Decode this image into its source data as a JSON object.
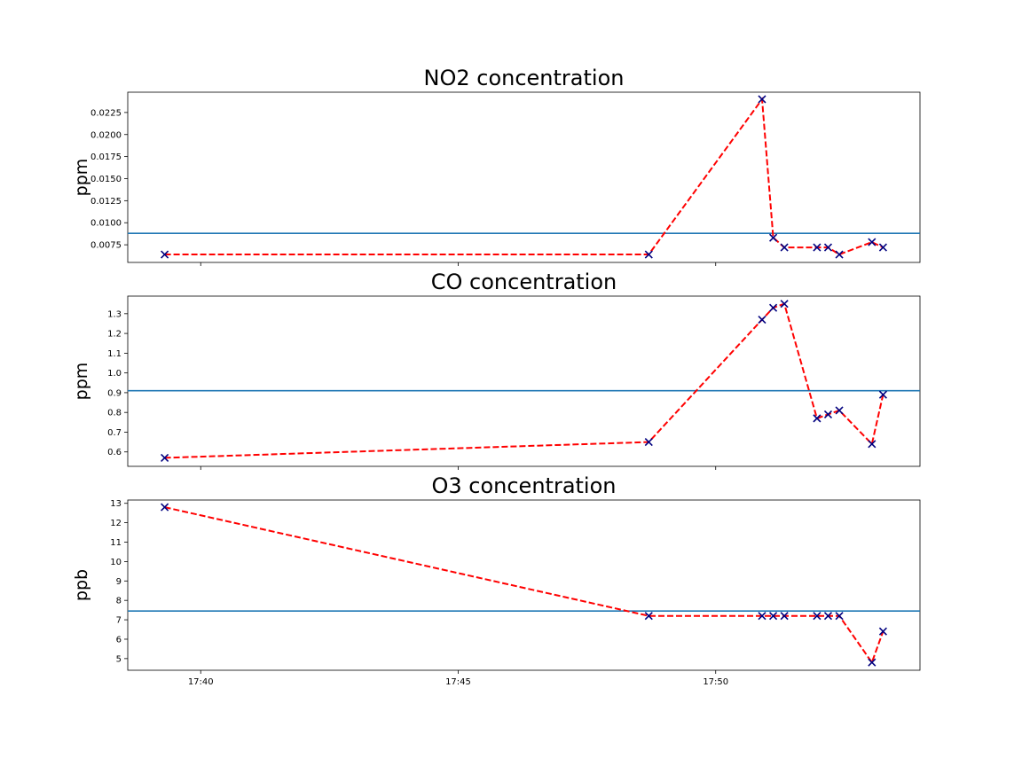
{
  "chart_data": [
    {
      "type": "line",
      "title": "NO2 concentration",
      "xlabel": "",
      "ylabel": "ppm",
      "x": [
        "17:39:18",
        "17:48:42",
        "17:50:54",
        "17:51:07",
        "17:51:20",
        "17:51:58",
        "17:52:11",
        "17:52:24",
        "17:53:02",
        "17:53:15"
      ],
      "xlim": [
        "17:38:35",
        "17:53:58"
      ],
      "ylim": [
        0.0055,
        0.0248
      ],
      "yticks": [
        0.0075,
        0.01,
        0.0125,
        0.015,
        0.0175,
        0.02,
        0.0225
      ],
      "ytick_labels": [
        "0.0075",
        "0.0100",
        "0.0125",
        "0.0150",
        "0.0175",
        "0.0200",
        "0.0225"
      ],
      "xticks": [
        "17:40",
        "17:45",
        "17:50"
      ],
      "xtick_labels": [],
      "show_xtick_labels": false,
      "series": [
        {
          "values": [
            0.0064,
            0.0064,
            0.024,
            0.0083,
            0.0072,
            0.0072,
            0.0072,
            0.0064,
            0.0078,
            0.0072
          ],
          "color": "#ff0000",
          "marker_color": "#00007f"
        }
      ],
      "reference_line": 0.0088,
      "reference_color": "#1f77b4",
      "grid": false
    },
    {
      "type": "line",
      "title": "CO concentration",
      "xlabel": "",
      "ylabel": "ppm",
      "x": [
        "17:39:18",
        "17:48:42",
        "17:50:54",
        "17:51:07",
        "17:51:20",
        "17:51:58",
        "17:52:11",
        "17:52:24",
        "17:53:02",
        "17:53:15"
      ],
      "xlim": [
        "17:38:35",
        "17:53:58"
      ],
      "ylim": [
        0.527,
        1.389
      ],
      "yticks": [
        0.6,
        0.7,
        0.8,
        0.9,
        1.0,
        1.1,
        1.2,
        1.3
      ],
      "ytick_labels": [
        "0.6",
        "0.7",
        "0.8",
        "0.9",
        "1.0",
        "1.1",
        "1.2",
        "1.3"
      ],
      "xticks": [
        "17:40",
        "17:45",
        "17:50"
      ],
      "xtick_labels": [],
      "show_xtick_labels": false,
      "series": [
        {
          "values": [
            0.57,
            0.65,
            1.27,
            1.33,
            1.35,
            0.77,
            0.79,
            0.81,
            0.64,
            0.89
          ],
          "color": "#ff0000",
          "marker_color": "#00007f"
        }
      ],
      "reference_line": 0.91,
      "reference_color": "#1f77b4",
      "grid": false
    },
    {
      "type": "line",
      "title": "O3 concentration",
      "xlabel": "",
      "ylabel": "ppb",
      "x": [
        "17:39:18",
        "17:48:42",
        "17:50:54",
        "17:51:07",
        "17:51:20",
        "17:51:58",
        "17:52:11",
        "17:52:24",
        "17:53:02",
        "17:53:15"
      ],
      "xlim": [
        "17:38:35",
        "17:53:58"
      ],
      "ylim": [
        4.4,
        13.17
      ],
      "yticks": [
        5,
        6,
        7,
        8,
        9,
        10,
        11,
        12,
        13
      ],
      "ytick_labels": [
        "5",
        "6",
        "7",
        "8",
        "9",
        "10",
        "11",
        "12",
        "13"
      ],
      "xticks": [
        "17:40",
        "17:45",
        "17:50"
      ],
      "xtick_labels": [
        "17:40",
        "17:45",
        "17:50"
      ],
      "show_xtick_labels": true,
      "series": [
        {
          "values": [
            12.8,
            7.2,
            7.2,
            7.2,
            7.2,
            7.2,
            7.2,
            7.2,
            4.8,
            6.4
          ],
          "color": "#ff0000",
          "marker_color": "#00007f"
        }
      ],
      "reference_line": 7.45,
      "reference_color": "#1f77b4",
      "grid": false
    }
  ]
}
